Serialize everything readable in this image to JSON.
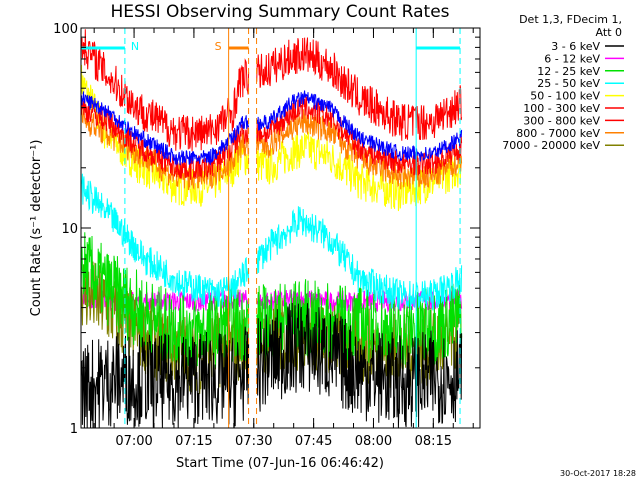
{
  "chart_data": {
    "type": "line",
    "title": "HESSI Observing Summary Count Rates",
    "xlabel": "Start Time (07-Jun-16 06:46:42)",
    "ylabel": "Count Rate (s⁻¹ detector⁻¹)",
    "ylog": true,
    "ylim": [
      1,
      100
    ],
    "y_ticks": [
      "1",
      "10",
      "100"
    ],
    "xlim_minutes": [
      0,
      100
    ],
    "x_ticks": [
      {
        "label": "07:00",
        "minutes": 13.3
      },
      {
        "label": "07:15",
        "minutes": 28.3
      },
      {
        "label": "07:30",
        "minutes": 43.3
      },
      {
        "label": "07:45",
        "minutes": 58.3
      },
      {
        "label": "08:00",
        "minutes": 73.3
      },
      {
        "label": "08:15",
        "minutes": 88.3
      }
    ],
    "legend_title": [
      "Det 1,3, FDecim 1,",
      "Att 0"
    ],
    "legend_position": "right",
    "series": [
      {
        "name": "3 - 6 keV",
        "color": "#000000",
        "points": [
          [
            0,
            1.6
          ],
          [
            10,
            1.8
          ],
          [
            20,
            1.7
          ],
          [
            30,
            1.8
          ],
          [
            38,
            1.7
          ],
          [
            47,
            2.2
          ],
          [
            55,
            2.6
          ],
          [
            62,
            2.3
          ],
          [
            70,
            1.9
          ],
          [
            80,
            1.7
          ],
          [
            90,
            1.8
          ],
          [
            100,
            1.9
          ]
        ]
      },
      {
        "name": "6 - 12 keV",
        "color": "#ff00ff",
        "points": [
          [
            0,
            4.5
          ],
          [
            10,
            4.3
          ],
          [
            20,
            4.3
          ],
          [
            30,
            4.3
          ],
          [
            38,
            4.4
          ],
          [
            47,
            4.3
          ],
          [
            55,
            4.4
          ],
          [
            62,
            4.3
          ],
          [
            70,
            4.3
          ],
          [
            80,
            4.3
          ],
          [
            90,
            4.3
          ],
          [
            100,
            4.5
          ]
        ]
      },
      {
        "name": "12 - 25 keV",
        "color": "#00e000",
        "points": [
          [
            0,
            6.5
          ],
          [
            10,
            4.5
          ],
          [
            20,
            3.3
          ],
          [
            30,
            3.0
          ],
          [
            38,
            3.3
          ],
          [
            47,
            3.4
          ],
          [
            55,
            3.6
          ],
          [
            62,
            3.4
          ],
          [
            70,
            3.3
          ],
          [
            80,
            3.0
          ],
          [
            90,
            3.3
          ],
          [
            100,
            3.8
          ]
        ]
      },
      {
        "name": "25 - 50 keV",
        "color": "#00ffff",
        "points": [
          [
            0,
            16
          ],
          [
            8,
            11
          ],
          [
            16,
            7.0
          ],
          [
            26,
            5.2
          ],
          [
            34,
            4.7
          ],
          [
            38,
            5.0
          ],
          [
            47,
            8.0
          ],
          [
            55,
            11.0
          ],
          [
            62,
            9.0
          ],
          [
            70,
            5.5
          ],
          [
            80,
            4.6
          ],
          [
            88,
            4.6
          ],
          [
            95,
            5.5
          ],
          [
            100,
            8
          ]
        ]
      },
      {
        "name": "50 - 100 keV",
        "color": "#ffff00",
        "points": [
          [
            0,
            55
          ],
          [
            6,
            30
          ],
          [
            14,
            21
          ],
          [
            24,
            16
          ],
          [
            32,
            16
          ],
          [
            38,
            20
          ],
          [
            40,
            23
          ],
          [
            47,
            20
          ],
          [
            53,
            24
          ],
          [
            56,
            25
          ],
          [
            62,
            23
          ],
          [
            70,
            17
          ],
          [
            80,
            15
          ],
          [
            88,
            17
          ],
          [
            95,
            20
          ],
          [
            100,
            24
          ]
        ]
      },
      {
        "name": "100 - 300 keV",
        "color": "#ff0000",
        "points": [
          [
            0,
            85
          ],
          [
            6,
            60
          ],
          [
            14,
            40
          ],
          [
            24,
            30
          ],
          [
            32,
            30
          ],
          [
            38,
            38
          ],
          [
            40,
            55
          ],
          [
            47,
            62
          ],
          [
            53,
            72
          ],
          [
            56,
            74
          ],
          [
            62,
            65
          ],
          [
            70,
            44
          ],
          [
            80,
            34
          ],
          [
            88,
            34
          ],
          [
            95,
            42
          ],
          [
            100,
            55
          ]
        ]
      },
      {
        "name": "300 - 800 keV",
        "color": "#ff0000",
        "points": [
          [
            0,
            40
          ],
          [
            6,
            35
          ],
          [
            14,
            26
          ],
          [
            24,
            20
          ],
          [
            32,
            20
          ],
          [
            38,
            25
          ],
          [
            40,
            30
          ],
          [
            47,
            30
          ],
          [
            53,
            38
          ],
          [
            56,
            40
          ],
          [
            62,
            36
          ],
          [
            70,
            25
          ],
          [
            80,
            21
          ],
          [
            88,
            21
          ],
          [
            95,
            25
          ],
          [
            100,
            32
          ]
        ]
      },
      {
        "name": "800 - 7000 keV",
        "color": "#ff8000",
        "points": [
          [
            0,
            36
          ],
          [
            6,
            30
          ],
          [
            14,
            24
          ],
          [
            24,
            18
          ],
          [
            32,
            18
          ],
          [
            38,
            22
          ],
          [
            40,
            26
          ],
          [
            47,
            26
          ],
          [
            53,
            32
          ],
          [
            56,
            34
          ],
          [
            62,
            31
          ],
          [
            70,
            22
          ],
          [
            80,
            18
          ],
          [
            88,
            18
          ],
          [
            95,
            22
          ],
          [
            100,
            28
          ]
        ]
      },
      {
        "name": "7000 - 20000 keV",
        "color": "#808000",
        "points": [
          [
            0,
            5
          ],
          [
            10,
            3.5
          ],
          [
            20,
            2.6
          ],
          [
            30,
            2.3
          ],
          [
            38,
            2.6
          ],
          [
            47,
            2.8
          ],
          [
            55,
            3.0
          ],
          [
            62,
            2.9
          ],
          [
            70,
            2.6
          ],
          [
            80,
            2.4
          ],
          [
            90,
            2.6
          ],
          [
            100,
            3.2
          ]
        ]
      }
    ],
    "series_colors": {
      "blue_band": "#0000ff"
    },
    "annotations": [
      {
        "label": "N",
        "color": "#00ffff",
        "start_min": 0,
        "end_min": 11
      },
      {
        "label": "S",
        "color": "#ff8000",
        "start_min": 37,
        "end_min": 42
      },
      {
        "label": "",
        "color": "#00ffff",
        "start_min": 84,
        "end_min": 95
      }
    ],
    "data_gap_minutes": [
      42,
      44
    ]
  },
  "footer": {
    "timestamp": "30-Oct-2017 18:28"
  }
}
